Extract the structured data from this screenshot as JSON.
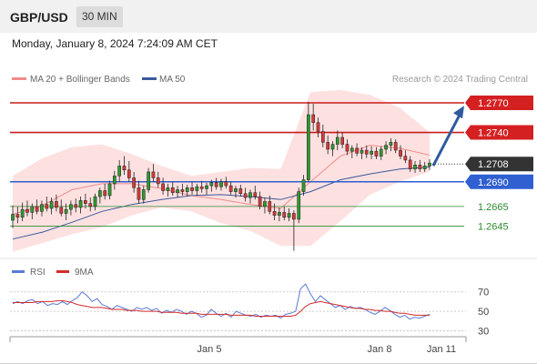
{
  "header": {
    "pair": "GBP/USD",
    "timeframe": "30 MIN",
    "datetime": "Monday, January 8, 2024 7:24:09 AM CET"
  },
  "chart_data": [
    {
      "type": "candlestick",
      "title": "GBP/USD",
      "legend": [
        {
          "name": "MA 20 + Bollinger Bands",
          "color": "#f08c8c"
        },
        {
          "name": "MA 50",
          "color": "#3a5a9a"
        }
      ],
      "credit": "Research © 2024 Trading Central",
      "current_price": {
        "label": "1.2708",
        "value": 1.2708
      },
      "levels": [
        {
          "label": "1.2770",
          "value": 1.277,
          "kind": "resistance",
          "color": "#c81e1e"
        },
        {
          "label": "1.2740",
          "value": 1.274,
          "kind": "resistance",
          "color": "#c81e1e"
        },
        {
          "label": "1.2690",
          "value": 1.269,
          "kind": "pivot",
          "color": "#2f5fd0"
        },
        {
          "label": "1.2665",
          "value": 1.2665,
          "kind": "support",
          "color": "#2e8b2e"
        },
        {
          "label": "1.2645",
          "value": 1.2645,
          "kind": "support",
          "color": "#2e8b2e"
        }
      ],
      "projection": {
        "direction": "up",
        "from": 1.2708,
        "to": 1.2767,
        "color": "#2f5aa0"
      },
      "x_tick_labels": [
        "Jan 5",
        "Jan 8",
        "Jan 11"
      ],
      "ylim": [
        1.2616,
        1.2782
      ],
      "candles": [
        [
          1.2651,
          1.2666,
          1.2643,
          1.2657
        ],
        [
          1.2657,
          1.2665,
          1.2648,
          1.2654
        ],
        [
          1.2654,
          1.2669,
          1.265,
          1.2662
        ],
        [
          1.2662,
          1.2671,
          1.2655,
          1.2659
        ],
        [
          1.2659,
          1.2668,
          1.2652,
          1.2665
        ],
        [
          1.2665,
          1.2672,
          1.2657,
          1.266
        ],
        [
          1.266,
          1.2671,
          1.2655,
          1.2667
        ],
        [
          1.2667,
          1.2675,
          1.266,
          1.2663
        ],
        [
          1.2663,
          1.2674,
          1.2657,
          1.267
        ],
        [
          1.267,
          1.2677,
          1.266,
          1.2664
        ],
        [
          1.2664,
          1.2672,
          1.2655,
          1.2658
        ],
        [
          1.2658,
          1.2668,
          1.2651,
          1.2662
        ],
        [
          1.2662,
          1.2671,
          1.2656,
          1.2667
        ],
        [
          1.2667,
          1.2673,
          1.2659,
          1.2664
        ],
        [
          1.2664,
          1.2675,
          1.2658,
          1.2671
        ],
        [
          1.2671,
          1.2678,
          1.2663,
          1.2668
        ],
        [
          1.2668,
          1.2674,
          1.266,
          1.2665
        ],
        [
          1.2665,
          1.2678,
          1.2661,
          1.2675
        ],
        [
          1.2675,
          1.2684,
          1.2668,
          1.2681
        ],
        [
          1.2681,
          1.2688,
          1.2672,
          1.2676
        ],
        [
          1.2676,
          1.2691,
          1.2672,
          1.2688
        ],
        [
          1.2688,
          1.2701,
          1.2682,
          1.2696
        ],
        [
          1.2696,
          1.2712,
          1.269,
          1.2706
        ],
        [
          1.2706,
          1.2716,
          1.2697,
          1.2702
        ],
        [
          1.2702,
          1.2711,
          1.269,
          1.2694
        ],
        [
          1.2694,
          1.27,
          1.2679,
          1.2684
        ],
        [
          1.2684,
          1.2691,
          1.2668,
          1.2672
        ],
        [
          1.2672,
          1.2686,
          1.2668,
          1.2682
        ],
        [
          1.2682,
          1.2704,
          1.2679,
          1.27
        ],
        [
          1.27,
          1.2708,
          1.269,
          1.2694
        ],
        [
          1.2694,
          1.27,
          1.2684,
          1.2688
        ],
        [
          1.2688,
          1.2694,
          1.2677,
          1.2681
        ],
        [
          1.2681,
          1.2688,
          1.2675,
          1.2684
        ],
        [
          1.2684,
          1.269,
          1.2676,
          1.2679
        ],
        [
          1.2679,
          1.2686,
          1.2674,
          1.2682
        ],
        [
          1.2682,
          1.2688,
          1.2676,
          1.268
        ],
        [
          1.268,
          1.2687,
          1.2675,
          1.2684
        ],
        [
          1.2684,
          1.269,
          1.2677,
          1.2681
        ],
        [
          1.2681,
          1.2688,
          1.2676,
          1.2685
        ],
        [
          1.2685,
          1.2691,
          1.2679,
          1.2683
        ],
        [
          1.2683,
          1.2689,
          1.2677,
          1.2686
        ],
        [
          1.2686,
          1.2692,
          1.268,
          1.2689
        ],
        [
          1.2689,
          1.2694,
          1.2682,
          1.2685
        ],
        [
          1.2685,
          1.2693,
          1.2681,
          1.269
        ],
        [
          1.269,
          1.2695,
          1.2683,
          1.2686
        ],
        [
          1.2686,
          1.269,
          1.2677,
          1.268
        ],
        [
          1.268,
          1.2686,
          1.2674,
          1.2683
        ],
        [
          1.2683,
          1.2687,
          1.2675,
          1.2678
        ],
        [
          1.2678,
          1.2684,
          1.267,
          1.2674
        ],
        [
          1.2674,
          1.2682,
          1.2668,
          1.2679
        ],
        [
          1.2679,
          1.2686,
          1.2672,
          1.2675
        ],
        [
          1.2675,
          1.268,
          1.2662,
          1.2665
        ],
        [
          1.2665,
          1.2674,
          1.2658,
          1.267
        ],
        [
          1.267,
          1.2676,
          1.2657,
          1.266
        ],
        [
          1.266,
          1.2668,
          1.2651,
          1.2656
        ],
        [
          1.2656,
          1.2664,
          1.265,
          1.2659
        ],
        [
          1.2659,
          1.2665,
          1.2651,
          1.2654
        ],
        [
          1.2654,
          1.2663,
          1.265,
          1.2658
        ],
        [
          1.2658,
          1.2661,
          1.262,
          1.2652
        ],
        [
          1.2652,
          1.2684,
          1.2648,
          1.268
        ],
        [
          1.268,
          1.2697,
          1.2676,
          1.2692
        ],
        [
          1.2692,
          1.2771,
          1.269,
          1.2758
        ],
        [
          1.2758,
          1.2769,
          1.2742,
          1.275
        ],
        [
          1.275,
          1.2755,
          1.2735,
          1.2741
        ],
        [
          1.2741,
          1.2748,
          1.2725,
          1.273
        ],
        [
          1.273,
          1.2737,
          1.2718,
          1.2723
        ],
        [
          1.2723,
          1.2731,
          1.2716,
          1.2728
        ],
        [
          1.2728,
          1.2742,
          1.2722,
          1.2735
        ],
        [
          1.2735,
          1.274,
          1.2724,
          1.2728
        ],
        [
          1.2728,
          1.2733,
          1.2717,
          1.2721
        ],
        [
          1.2721,
          1.2727,
          1.2714,
          1.2724
        ],
        [
          1.2724,
          1.2729,
          1.2716,
          1.2719
        ],
        [
          1.2719,
          1.2725,
          1.2713,
          1.2722
        ],
        [
          1.2722,
          1.2727,
          1.2714,
          1.2718
        ],
        [
          1.2718,
          1.2726,
          1.2713,
          1.2721
        ],
        [
          1.2721,
          1.2725,
          1.2713,
          1.2716
        ],
        [
          1.2716,
          1.2726,
          1.2712,
          1.2723
        ],
        [
          1.2723,
          1.2731,
          1.2718,
          1.2727
        ],
        [
          1.2727,
          1.2734,
          1.2721,
          1.273
        ],
        [
          1.273,
          1.2733,
          1.2719,
          1.2722
        ],
        [
          1.2722,
          1.2727,
          1.2713,
          1.2716
        ],
        [
          1.2716,
          1.2722,
          1.2709,
          1.2712
        ],
        [
          1.2712,
          1.2716,
          1.27,
          1.2703
        ],
        [
          1.2703,
          1.2711,
          1.2699,
          1.2707
        ],
        [
          1.2707,
          1.2712,
          1.27,
          1.2703
        ],
        [
          1.2703,
          1.271,
          1.27,
          1.2706
        ],
        [
          1.2706,
          1.2713,
          1.2702,
          1.2709
        ]
      ],
      "bollinger": {
        "upper": [
          1.2696,
          1.2714,
          1.2725,
          1.2728,
          1.2718,
          1.2706,
          1.2696,
          1.27,
          1.2704,
          1.2703,
          1.2781,
          1.2783,
          1.2778,
          1.2765,
          1.274
        ],
        "lower": [
          1.2619,
          1.2628,
          1.2637,
          1.2644,
          1.2656,
          1.2664,
          1.266,
          1.2648,
          1.264,
          1.2625,
          1.2625,
          1.265,
          1.2677,
          1.269,
          1.27
        ]
      },
      "ma20": [
        1.2657,
        1.2666,
        1.2682,
        1.2688,
        1.2688,
        1.2683,
        1.2676,
        1.2672,
        1.2667,
        1.2663,
        1.269,
        1.2716,
        1.2727,
        1.2724,
        1.2717
      ],
      "ma50": [
        1.2632,
        1.2639,
        1.2649,
        1.266,
        1.2667,
        1.2672,
        1.2676,
        1.2677,
        1.2675,
        1.2672,
        1.268,
        1.2692,
        1.2698,
        1.2703,
        1.2705
      ]
    },
    {
      "type": "line",
      "legend": [
        {
          "name": "RSI",
          "color": "#5b7bd5"
        },
        {
          "name": "9MA",
          "color": "#d42a2a"
        }
      ],
      "yticks": [
        70,
        50,
        30
      ],
      "ylim": [
        24,
        80
      ],
      "series": [
        {
          "name": "RSI",
          "values": [
            58,
            60,
            58,
            61,
            62,
            58,
            60,
            56,
            58,
            57,
            60,
            57,
            61,
            64,
            70,
            66,
            60,
            63,
            57,
            55,
            52,
            56,
            54,
            52,
            50,
            54,
            52,
            54,
            51,
            53,
            48,
            51,
            49,
            52,
            50,
            47,
            50,
            48,
            44,
            46,
            52,
            48,
            45,
            48,
            44,
            50,
            48,
            46,
            45,
            47,
            44,
            46,
            45,
            46,
            43,
            47,
            48,
            50,
            73,
            78,
            68,
            60,
            66,
            62,
            58,
            54,
            56,
            52,
            55,
            53,
            54,
            52,
            49,
            47,
            50,
            54,
            51,
            47,
            44,
            46,
            42,
            44,
            43,
            45,
            47
          ]
        },
        {
          "name": "9MA",
          "values": [
            59,
            59,
            59,
            59,
            59,
            60,
            60,
            60,
            60,
            61,
            61,
            60,
            59,
            57,
            56,
            55,
            54,
            54,
            54,
            53,
            52,
            52,
            52,
            51,
            51,
            51,
            50,
            50,
            50,
            50,
            49,
            49,
            49,
            49,
            48,
            48,
            48,
            48,
            47,
            47,
            47,
            47,
            47,
            47,
            46,
            46,
            46,
            46,
            46,
            45,
            45,
            45,
            45,
            45,
            45,
            45,
            45,
            46,
            50,
            55,
            58,
            59,
            60,
            59,
            58,
            57,
            56,
            55,
            54,
            53,
            53,
            52,
            52,
            51,
            51,
            50,
            50,
            49,
            48,
            48,
            47,
            46,
            46,
            46,
            46
          ]
        }
      ]
    }
  ]
}
